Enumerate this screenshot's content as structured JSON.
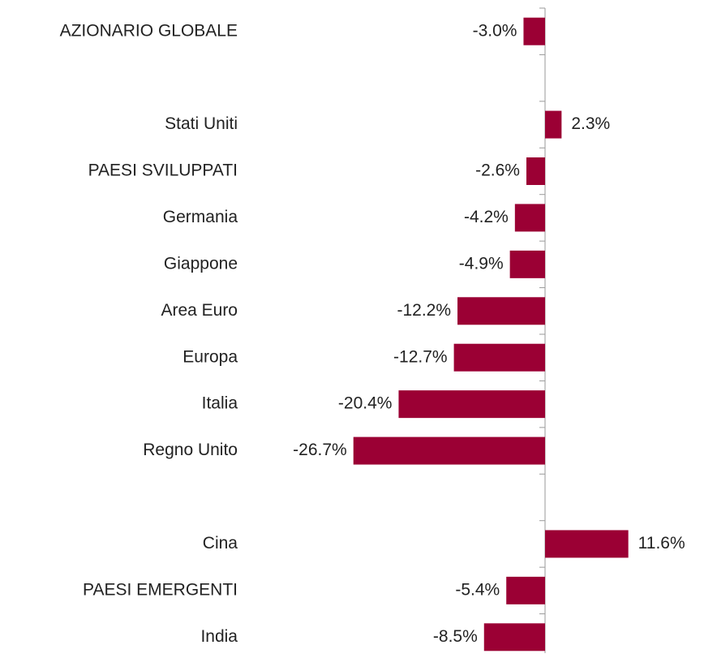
{
  "chart_data": {
    "type": "bar",
    "orientation": "horizontal",
    "categories": [
      "AZIONARIO GLOBALE",
      null,
      "Stati Uniti",
      "PAESI SVILUPPATI",
      "Germania",
      "Giappone",
      "Area Euro",
      "Europa",
      "Italia",
      "Regno Unito",
      null,
      "Cina",
      "PAESI EMERGENTI",
      "India"
    ],
    "values": [
      -3.0,
      null,
      2.3,
      -2.6,
      -4.2,
      -4.9,
      -12.2,
      -12.7,
      -20.4,
      -26.7,
      null,
      11.6,
      -5.4,
      -8.5
    ],
    "value_labels": [
      "-3.0%",
      null,
      "2.3%",
      "-2.6%",
      "-4.2%",
      "-4.9%",
      "-12.2%",
      "-12.7%",
      "-20.4%",
      "-26.7%",
      null,
      "11.6%",
      "-5.4%",
      "-8.5%"
    ],
    "color": "#9b0034",
    "xlim": [
      -30,
      15
    ]
  }
}
